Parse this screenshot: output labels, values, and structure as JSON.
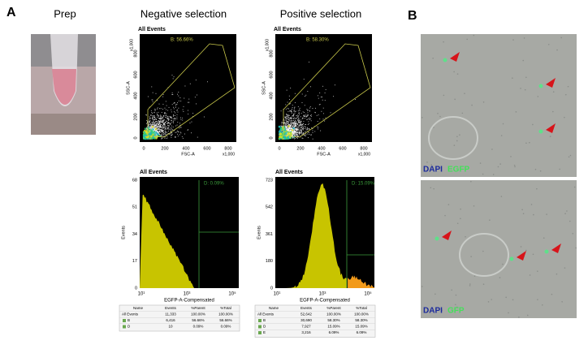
{
  "panel_a": {
    "label": "A",
    "prep": "Prep",
    "negative": {
      "title": "Negative selection",
      "scatter": {
        "title": "All Events",
        "gate": "B: 56.66%",
        "x_label": "FSC-A",
        "y_label": "SSC-A",
        "x_unit": "x1,000",
        "y_unit": "x1,000",
        "xticks": [
          "0",
          "200",
          "400",
          "600",
          "800"
        ],
        "yticks": [
          "0",
          "200",
          "400",
          "600",
          "800"
        ]
      },
      "histogram": {
        "title": "All Events",
        "gate": "D: 0.09%",
        "y_label": "Events",
        "x_label": "EGFP-A-Compensated",
        "yticks": [
          "68",
          "51",
          "34",
          "17",
          "0"
        ],
        "xticks": [
          "10¹",
          "10³",
          "10⁵"
        ]
      },
      "table": {
        "columns": [
          "Name",
          "Events",
          "%Parent",
          "%Total"
        ],
        "rows": [
          [
            "All Events",
            "11,333",
            "100.00%",
            "100.00%"
          ],
          [
            "B",
            "6,416",
            "56.66%",
            "56.66%"
          ],
          [
            "D",
            "10",
            "0.09%",
            "0.09%"
          ]
        ]
      }
    },
    "positive": {
      "title": "Positive selection",
      "scatter": {
        "title": "All Events",
        "gate": "B: 58.30%",
        "x_label": "FSC-A",
        "y_label": "SSC-A",
        "x_unit": "x1,000",
        "y_unit": "x1,000",
        "xticks": [
          "0",
          "200",
          "400",
          "600",
          "800"
        ],
        "yticks": [
          "0",
          "200",
          "400",
          "600",
          "800"
        ]
      },
      "histogram": {
        "title": "All Events",
        "gate": "D: 15.09%",
        "y_label": "Events",
        "x_label": "EGFP-A-Compensated",
        "yticks": [
          "723",
          "542",
          "361",
          "180",
          "0"
        ],
        "xticks": [
          "10¹",
          "10³",
          "10⁵"
        ]
      },
      "table": {
        "columns": [
          "Name",
          "Events",
          "%Parent",
          "%Total"
        ],
        "rows": [
          [
            "All Events",
            "52,642",
            "100.00%",
            "100.00%"
          ],
          [
            "B",
            "30,690",
            "58.30%",
            "58.30%"
          ],
          [
            "D",
            "7,927",
            "15.09%",
            "15.09%"
          ],
          [
            "E",
            "3,216",
            "6.09%",
            "6.09%"
          ]
        ]
      }
    }
  },
  "panel_b": {
    "label": "B",
    "images": [
      {
        "stain_blue": "DAPI",
        "stain_green": "EGFP"
      },
      {
        "stain_blue": "DAPI",
        "stain_green": "GFP"
      }
    ]
  }
}
